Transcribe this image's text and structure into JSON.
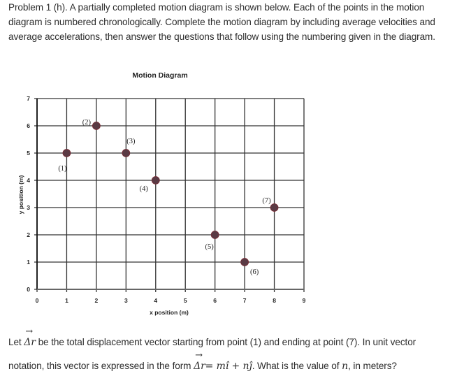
{
  "intro": {
    "text": "Problem 1 (h). A partially completed motion diagram is shown below. Each of the points in the motion diagram is numbered chronologically. Complete the motion diagram by including average velocities and average accelerations, then answer the questions that follow using the numbering given in the diagram."
  },
  "chart_data": {
    "type": "scatter",
    "title": "Motion Diagram",
    "xlabel": "x position (m)",
    "ylabel": "y position (m)",
    "xlim": [
      0,
      9
    ],
    "ylim": [
      0,
      7
    ],
    "x_ticks": [
      "0",
      "1",
      "2",
      "3",
      "4",
      "5",
      "6",
      "7",
      "8",
      "9"
    ],
    "y_ticks": [
      "0",
      "1",
      "2",
      "3",
      "4",
      "5",
      "6",
      "7"
    ],
    "grid": true,
    "legend": "none",
    "marker_color": "#5a3a44",
    "points": [
      {
        "label": "(1)",
        "x": 1,
        "y": 5
      },
      {
        "label": "(2)",
        "x": 2,
        "y": 6
      },
      {
        "label": "(3)",
        "x": 3,
        "y": 5
      },
      {
        "label": "(4)",
        "x": 4,
        "y": 4
      },
      {
        "label": "(5)",
        "x": 6,
        "y": 2
      },
      {
        "label": "(6)",
        "x": 7,
        "y": 1
      },
      {
        "label": "(7)",
        "x": 8,
        "y": 3
      }
    ]
  },
  "question": {
    "line1_prefix": "Let",
    "line1_vec": "Δr",
    "line1_suffix": "be the total displacement vector starting from point (1) and ending at point (7). In unit vector",
    "line2_prefix": "notation, this vector is expressed in the form",
    "line2_formula_lhs": "Δr",
    "line2_formula_rhs": "= mî + nĵ",
    "line2_suffix": ". What is the value of",
    "line2_var": "n",
    "line2_end": ", in meters?"
  }
}
